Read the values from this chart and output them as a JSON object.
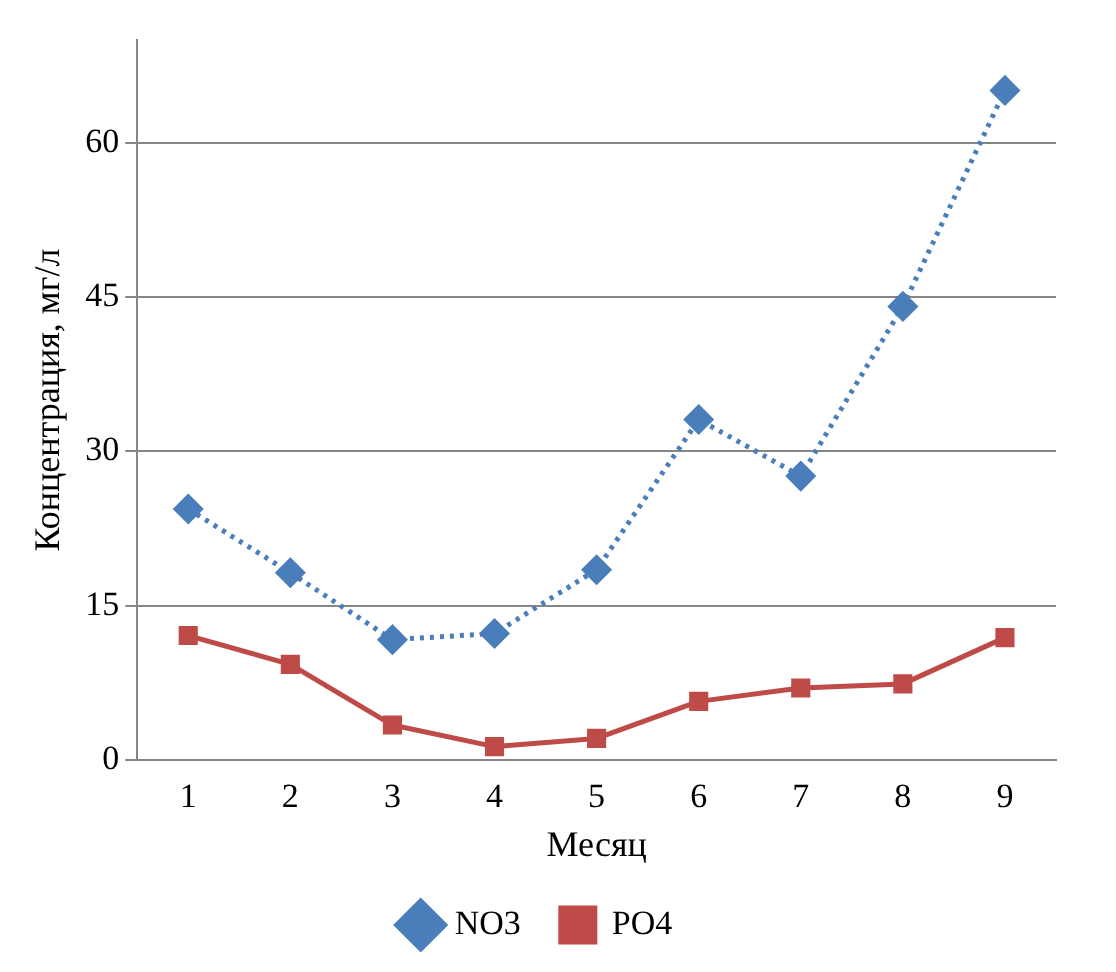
{
  "chart_data": {
    "type": "line",
    "xlabel": "Месяц",
    "ylabel": "Концентрация, мг/л",
    "categories": [
      "1",
      "2",
      "3",
      "4",
      "5",
      "6",
      "7",
      "8",
      "9"
    ],
    "series": [
      {
        "name": "NO3",
        "color": "#4a7ebb",
        "marker": "diamond",
        "line_style": "dotted",
        "values": [
          24.4,
          18.2,
          11.7,
          12.3,
          18.5,
          33.1,
          27.6,
          44.1,
          65.1
        ]
      },
      {
        "name": "PO4",
        "color": "#be4b48",
        "marker": "square",
        "line_style": "solid",
        "values": [
          12.1,
          9.3,
          3.4,
          1.3,
          2.1,
          5.7,
          7.0,
          7.4,
          11.9
        ]
      }
    ],
    "ylim": [
      0,
      70
    ],
    "yticks": [
      0,
      15,
      30,
      45,
      60
    ],
    "grid": "y",
    "legend": "bottom"
  }
}
